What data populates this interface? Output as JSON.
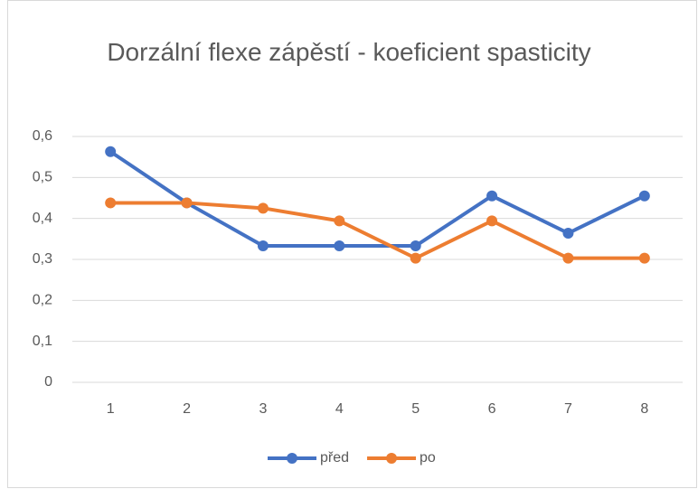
{
  "chart_data": {
    "type": "line",
    "title": "Dorzální flexe zápěstí - koeficient spasticity",
    "categories": [
      "1",
      "2",
      "3",
      "4",
      "5",
      "6",
      "7",
      "8"
    ],
    "series": [
      {
        "name": "před",
        "color": "#4472c4",
        "values": [
          0.563,
          0.438,
          0.333,
          0.333,
          0.333,
          0.455,
          0.364,
          0.455
        ]
      },
      {
        "name": "po",
        "color": "#ed7d31",
        "values": [
          0.438,
          0.438,
          0.425,
          0.394,
          0.303,
          0.394,
          0.303,
          0.303
        ]
      }
    ],
    "ylim": [
      0,
      0.6
    ],
    "yticks": [
      0,
      {
        "value": 0.1,
        "label": "0,1"
      },
      {
        "value": 0.2,
        "label": "0,2"
      },
      {
        "value": 0.3,
        "label": "0,3"
      },
      {
        "value": 0.4,
        "label": "0,4"
      },
      {
        "value": 0.5,
        "label": "0,5"
      },
      {
        "value": 0.6,
        "label": "0,6"
      }
    ],
    "grid": true,
    "legend": "bottom"
  }
}
